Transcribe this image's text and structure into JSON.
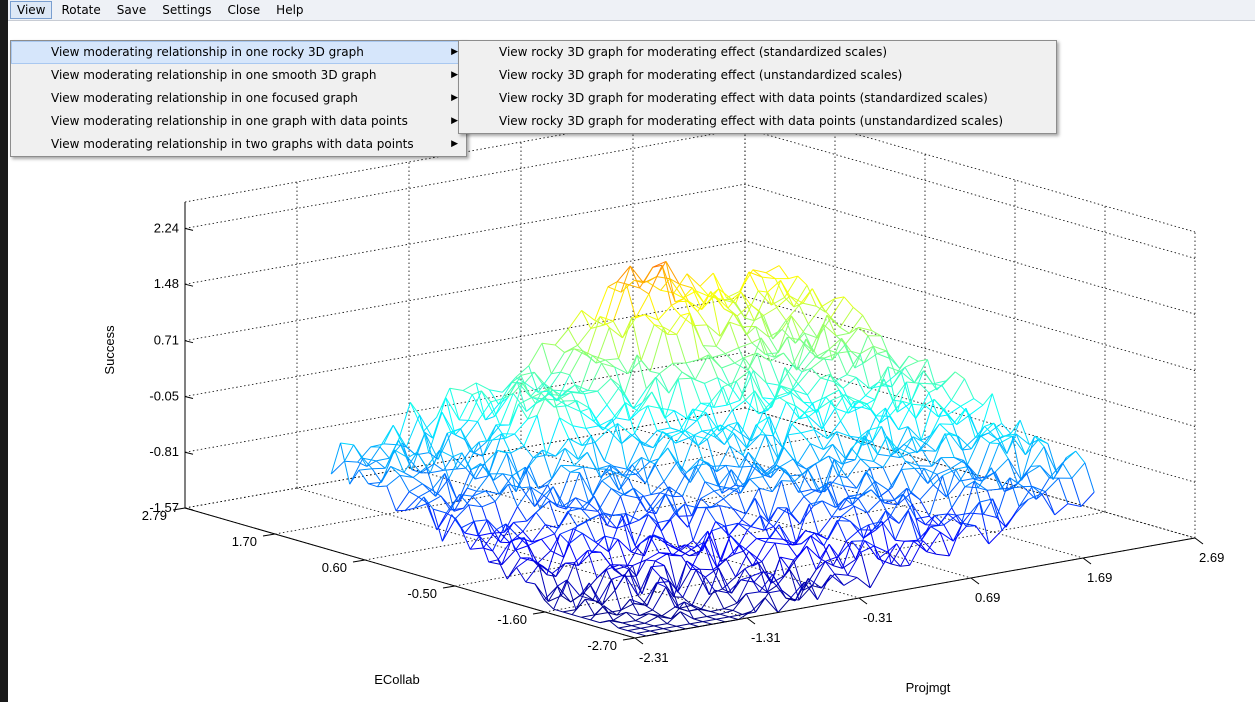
{
  "menubar": {
    "items": [
      "View",
      "Rotate",
      "Save",
      "Settings",
      "Close",
      "Help"
    ]
  },
  "view_menu": {
    "items": [
      "View moderating relationship in one rocky 3D graph",
      "View moderating relationship in one smooth 3D graph",
      "View moderating relationship in one focused graph",
      "View moderating relationship in one graph with data points",
      "View moderating relationship in two graphs with data points"
    ]
  },
  "submenu": {
    "items": [
      "View rocky 3D graph for moderating effect (standardized scales)",
      "View rocky 3D graph for moderating effect (unstandardized scales)",
      "View rocky 3D graph for moderating effect with data points (standardized scales)",
      "View rocky 3D graph for moderating effect with data points (unstandardized scales)"
    ]
  },
  "chart_data": {
    "type": "surface3d",
    "zlabel": "Success",
    "xlabel": "ECollab",
    "ylabel": "Projmgt",
    "z_ticks": [
      "2.24",
      "1.48",
      "0.71",
      "-0.05",
      "-0.81",
      "-1.57"
    ],
    "ecollab_ticks": [
      "2.79",
      "1.70",
      "0.60",
      "-0.50",
      "-1.60",
      "-2.70"
    ],
    "projmgt_ticks": [
      "-2.31",
      "-1.31",
      "-0.31",
      "0.69",
      "1.69",
      "2.69"
    ],
    "z_range": [
      -1.57,
      2.6
    ],
    "grid": true,
    "colormap": "jet"
  }
}
